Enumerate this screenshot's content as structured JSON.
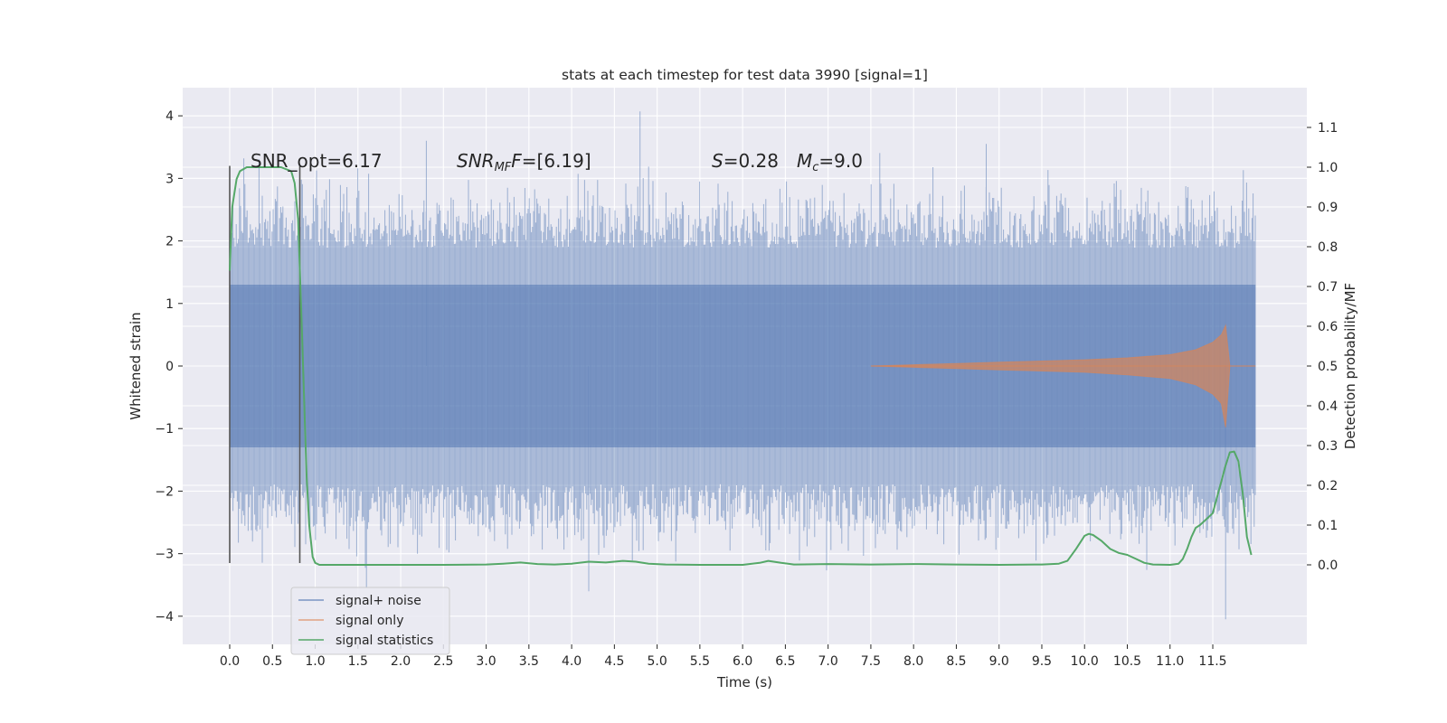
{
  "chart_data": {
    "type": "line",
    "title": "stats at each timestep for test data 3990 [signal=1]",
    "xlabel": "Time (s)",
    "ylabel": "Whitened strain",
    "ylabel_right": "Detection probability/MF",
    "xlim": [
      -0.55,
      12.6
    ],
    "ylim": [
      -4.45,
      4.45
    ],
    "ylim_right": [
      -0.2,
      1.2
    ],
    "grid": true,
    "legend_position": "lower-left",
    "x_ticks": [
      "0.0",
      "0.5",
      "1.0",
      "1.5",
      "2.0",
      "2.5",
      "3.0",
      "3.5",
      "4.0",
      "4.5",
      "5.0",
      "5.5",
      "6.0",
      "6.5",
      "7.0",
      "7.5",
      "8.0",
      "8.5",
      "9.0",
      "9.5",
      "10.0",
      "10.5",
      "11.0",
      "11.5"
    ],
    "y_ticks": [
      "4",
      "3",
      "2",
      "1",
      "0",
      "−1",
      "−2",
      "−3",
      "−4"
    ],
    "y_ticks_right": [
      "1.1",
      "1.0",
      "0.9",
      "0.8",
      "0.7",
      "0.6",
      "0.5",
      "0.4",
      "0.3",
      "0.2",
      "0.1",
      "0.0"
    ],
    "annotations": {
      "snr_opt": "SNR_opt=6.17",
      "snr_mf_name": "SNR",
      "snr_mf_sub": "MF",
      "snr_mf_value": "=[6.19]",
      "s_name": "S",
      "s_value": "=0.28",
      "mc_name": "M",
      "mc_sub": "c",
      "mc_value": "=9.0"
    },
    "window_markers_x": [
      0.0,
      0.82
    ],
    "series": [
      {
        "name": "signal+ noise",
        "color": "#4c72b0",
        "style": "band",
        "x_start": 0.0,
        "x_end": 12.0,
        "core_range": [
          -1.3,
          1.3
        ],
        "typical_extent": [
          -2.1,
          2.1
        ],
        "notable_peaks": [
          [
            4.8,
            4.07
          ],
          [
            2.3,
            3.6
          ],
          [
            8.85,
            3.55
          ],
          [
            11.65,
            -4.05
          ],
          [
            4.2,
            -3.6
          ],
          [
            1.6,
            -3.55
          ]
        ]
      },
      {
        "name": "signal only",
        "color": "#dd8452",
        "style": "chirp-envelope",
        "x": [
          7.5,
          8.0,
          8.5,
          9.0,
          9.5,
          10.0,
          10.5,
          11.0,
          11.3,
          11.5,
          11.6,
          11.65,
          11.7,
          12.0
        ],
        "upper": [
          0.0,
          0.02,
          0.04,
          0.06,
          0.08,
          0.1,
          0.13,
          0.18,
          0.26,
          0.38,
          0.5,
          0.65,
          0.0,
          0.0
        ],
        "lower": [
          0.0,
          -0.02,
          -0.04,
          -0.06,
          -0.08,
          -0.1,
          -0.14,
          -0.2,
          -0.3,
          -0.45,
          -0.6,
          -0.98,
          0.0,
          0.0
        ]
      },
      {
        "name": "signal statistics",
        "color": "#55a868",
        "axis": "right",
        "x": [
          0.0,
          0.03,
          0.08,
          0.12,
          0.2,
          0.3,
          0.4,
          0.6,
          0.72,
          0.76,
          0.8,
          0.84,
          0.88,
          0.9,
          0.93,
          0.97,
          1.0,
          1.05,
          1.5,
          2.0,
          2.5,
          3.0,
          3.2,
          3.4,
          3.6,
          3.8,
          4.0,
          4.2,
          4.4,
          4.6,
          4.75,
          4.9,
          5.1,
          5.5,
          6.0,
          6.2,
          6.3,
          6.45,
          6.6,
          7.0,
          7.5,
          8.0,
          8.5,
          9.0,
          9.5,
          9.7,
          9.8,
          9.9,
          10.0,
          10.05,
          10.1,
          10.2,
          10.3,
          10.4,
          10.5,
          10.6,
          10.7,
          10.8,
          11.0,
          11.1,
          11.15,
          11.2,
          11.25,
          11.3,
          11.35,
          11.4,
          11.5,
          11.55,
          11.6,
          11.65,
          11.7,
          11.75,
          11.8,
          11.85,
          11.9,
          11.95
        ],
        "y": [
          0.74,
          0.9,
          0.97,
          0.99,
          1.0,
          1.0,
          1.0,
          1.0,
          0.99,
          0.96,
          0.87,
          0.62,
          0.35,
          0.22,
          0.1,
          0.02,
          0.005,
          0.0,
          0.0,
          0.0,
          0.0,
          0.001,
          0.003,
          0.006,
          0.002,
          0.001,
          0.003,
          0.008,
          0.006,
          0.01,
          0.008,
          0.003,
          0.001,
          0.0,
          0.0,
          0.005,
          0.01,
          0.005,
          0.001,
          0.002,
          0.001,
          0.002,
          0.001,
          0.0,
          0.001,
          0.003,
          0.01,
          0.04,
          0.073,
          0.078,
          0.075,
          0.06,
          0.04,
          0.03,
          0.025,
          0.015,
          0.005,
          0.001,
          0.0,
          0.003,
          0.015,
          0.04,
          0.07,
          0.093,
          0.1,
          0.11,
          0.13,
          0.17,
          0.21,
          0.25,
          0.283,
          0.285,
          0.26,
          0.18,
          0.07,
          0.025
        ]
      }
    ]
  }
}
